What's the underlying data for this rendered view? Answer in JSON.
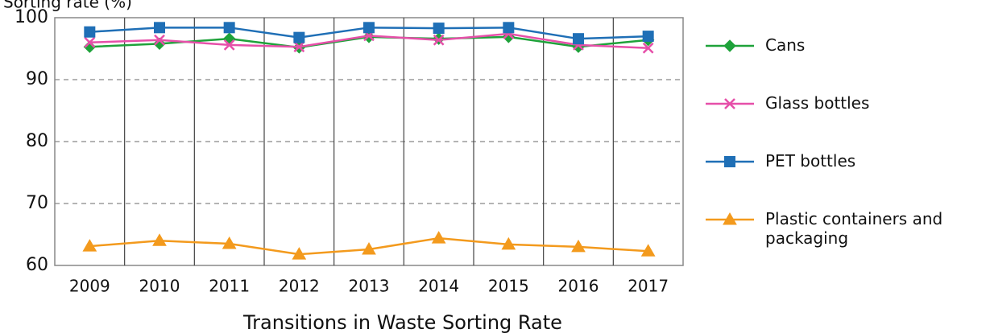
{
  "chart_data": {
    "type": "line",
    "title": "Transitions in Waste Sorting Rate",
    "ylabel": "Sorting rate (%)",
    "categories": [
      "2009",
      "2010",
      "2011",
      "2012",
      "2013",
      "2014",
      "2015",
      "2016",
      "2017"
    ],
    "series": [
      {
        "name": "Cans",
        "color": "#1ea23a",
        "marker": "diamond",
        "values": [
          95.3,
          95.8,
          96.6,
          95.2,
          96.9,
          96.6,
          96.9,
          95.3,
          96.4
        ]
      },
      {
        "name": "Glass bottles",
        "color": "#e64fa9",
        "marker": "x",
        "values": [
          96.0,
          96.4,
          95.6,
          95.3,
          97.1,
          96.4,
          97.4,
          95.6,
          95.1
        ]
      },
      {
        "name": "PET bottles",
        "color": "#1f6fb6",
        "marker": "square",
        "values": [
          97.7,
          98.4,
          98.4,
          96.8,
          98.4,
          98.3,
          98.4,
          96.6,
          97.0
        ]
      },
      {
        "name": "Plastic containers and packaging",
        "color": "#f39a1d",
        "marker": "triangle",
        "values": [
          63.1,
          64.0,
          63.5,
          61.8,
          62.6,
          64.4,
          63.4,
          63.0,
          62.3
        ]
      }
    ],
    "ylim": [
      60,
      100
    ],
    "yticks": [
      60,
      70,
      80,
      90,
      100
    ],
    "grid": true,
    "legend": "right"
  }
}
